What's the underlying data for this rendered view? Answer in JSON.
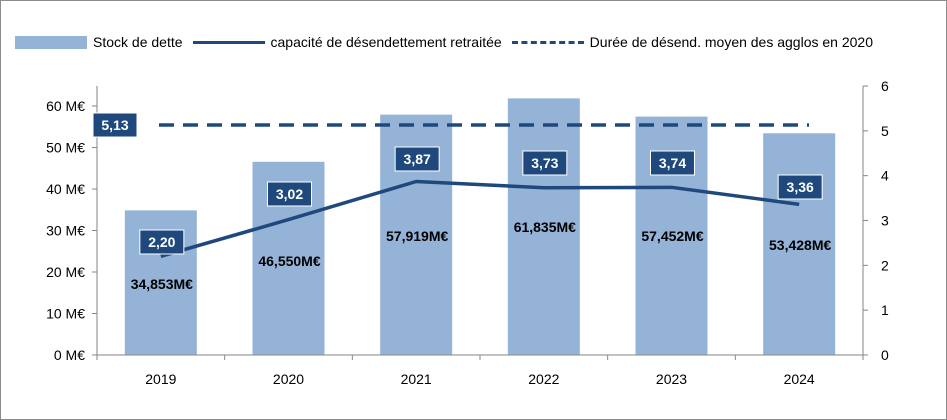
{
  "chart_data": {
    "type": "bar",
    "categories": [
      "2019",
      "2020",
      "2021",
      "2022",
      "2023",
      "2024"
    ],
    "series": [
      {
        "name": "Stock de dette",
        "type": "bar",
        "axis": "left",
        "values": [
          34.853,
          46.55,
          57.919,
          61.835,
          57.452,
          53.428
        ],
        "labels": [
          "34,853M€",
          "46,550M€",
          "57,919M€",
          "61,835M€",
          "57,452M€",
          "53,428M€"
        ]
      },
      {
        "name": "capacité de désendettement retraitée",
        "type": "line",
        "axis": "right",
        "values": [
          2.2,
          3.02,
          3.87,
          3.73,
          3.74,
          3.36
        ],
        "labels": [
          "2,20",
          "3,02",
          "3,87",
          "3,73",
          "3,74",
          "3,36"
        ]
      },
      {
        "name": "Durée de désend. moyen des agglos en 2020",
        "type": "dashed-line",
        "axis": "right",
        "values": [
          5.13,
          5.13,
          5.13,
          5.13,
          5.13,
          5.13
        ],
        "labels": [
          "5,13"
        ]
      }
    ],
    "left_axis": {
      "ylim": [
        0,
        65
      ],
      "ticks": [
        0,
        10,
        20,
        30,
        40,
        50,
        60
      ],
      "tick_labels": [
        "0 M€",
        "10 M€",
        "20 M€",
        "30 M€",
        "40 M€",
        "50 M€",
        "60 M€"
      ]
    },
    "right_axis": {
      "ylim": [
        0,
        6
      ],
      "ticks": [
        0,
        1,
        2,
        3,
        4,
        5,
        6
      ],
      "tick_labels": [
        "0",
        "1",
        "2",
        "3",
        "4",
        "5",
        "6"
      ]
    },
    "legend": "top",
    "grid": false,
    "colors": {
      "bar": "#95b3d7",
      "line": "#1f497d",
      "label_box": "#1f497d",
      "label_text": "#ffffff"
    }
  }
}
